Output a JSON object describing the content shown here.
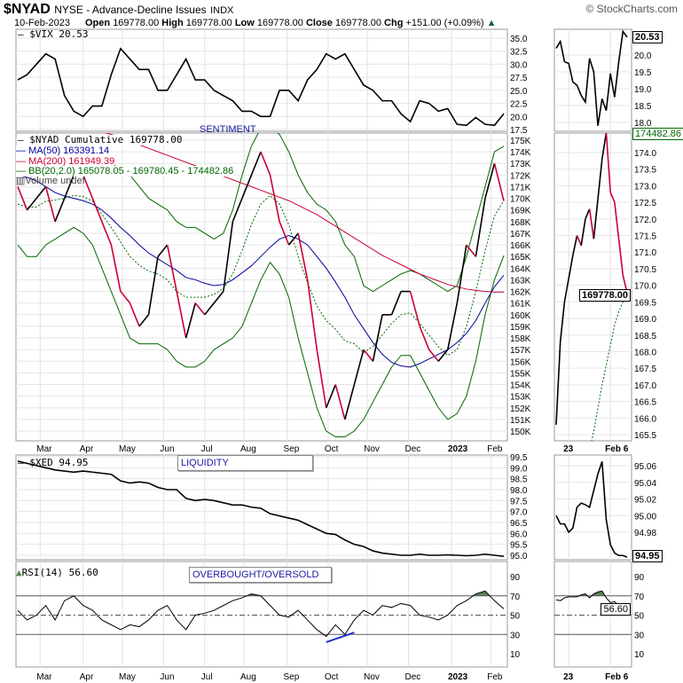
{
  "header": {
    "symbol": "$NYAD",
    "exchange": "NYSE - Advance-Decline Issues",
    "type": "INDX",
    "brand": "© StockCharts.com",
    "date": "10-Feb-2023",
    "open_label": "Open",
    "open": "169778.00",
    "high_label": "High",
    "high": "169778.00",
    "low_label": "Low",
    "low": "169778.00",
    "close_label": "Close",
    "close": "169778.00",
    "chg_label": "Chg",
    "chg": "+151.00 (+0.09%)"
  },
  "legends": {
    "vix": "$VIX 20.53",
    "nyad": "$NYAD Cumulative 169778.00",
    "ma50": "MA(50) 163391.14",
    "ma200": "MA(200) 161949.39",
    "bb": "BB(20,2.0) 165078.05 - 169780.45 - 174482.86",
    "volume": "Volume undef",
    "xed": "$XED 94.95",
    "rsi": "RSI(14) 56.60"
  },
  "annotations": {
    "sentiment": "SENTIMENT",
    "liquidity": "LIQUIDITY",
    "obos": "OVERBOUGHT/OVERSOLD"
  },
  "last_values": {
    "vix": "20.53",
    "bb_upper": "174482.86",
    "nyad": "169778.00",
    "xed": "94.95",
    "rsi": "56.60"
  },
  "colors": {
    "price": "#000000",
    "down": "#cc0033",
    "ma50": "#000099",
    "ma200": "#cc0033",
    "bb": "#006600",
    "annotation": "#1a1aa0",
    "rsi_fill_high": "#5a7f5a",
    "divergence": "#2233cc"
  },
  "chart_data": {
    "type": "line",
    "month_labels": [
      [
        "2022-03-01",
        "Mar"
      ],
      [
        "2022-04-01",
        "Apr"
      ],
      [
        "2022-05-02",
        "May"
      ],
      [
        "2022-06-01",
        "Jun"
      ],
      [
        "2022-07-01",
        "Jul"
      ],
      [
        "2022-08-01",
        "Aug"
      ],
      [
        "2022-09-01",
        "Sep"
      ],
      [
        "2022-10-03",
        "Oct"
      ],
      [
        "2022-11-01",
        "Nov"
      ],
      [
        "2022-12-01",
        "Dec"
      ],
      [
        "2023-01-03",
        "2023"
      ],
      [
        "2023-02-01",
        "Feb"
      ]
    ],
    "weekly_dates": [
      "2022-02-11",
      "2022-02-18",
      "2022-02-25",
      "2022-03-04",
      "2022-03-11",
      "2022-03-18",
      "2022-03-25",
      "2022-04-01",
      "2022-04-08",
      "2022-04-15",
      "2022-04-22",
      "2022-04-29",
      "2022-05-06",
      "2022-05-13",
      "2022-05-20",
      "2022-05-27",
      "2022-06-03",
      "2022-06-10",
      "2022-06-17",
      "2022-06-24",
      "2022-07-01",
      "2022-07-08",
      "2022-07-15",
      "2022-07-22",
      "2022-07-29",
      "2022-08-05",
      "2022-08-12",
      "2022-08-19",
      "2022-08-26",
      "2022-09-02",
      "2022-09-09",
      "2022-09-16",
      "2022-09-23",
      "2022-09-30",
      "2022-10-07",
      "2022-10-14",
      "2022-10-21",
      "2022-10-28",
      "2022-11-04",
      "2022-11-11",
      "2022-11-18",
      "2022-11-25",
      "2022-12-02",
      "2022-12-09",
      "2022-12-16",
      "2022-12-23",
      "2022-12-30",
      "2023-01-06",
      "2023-01-13",
      "2023-01-20",
      "2023-01-27",
      "2023-02-03",
      "2023-02-10"
    ],
    "vix": {
      "ticks": [
        17.5,
        20,
        22.5,
        25,
        27.5,
        30,
        32.5,
        35
      ],
      "ylim": [
        17.5,
        35
      ],
      "values": [
        27,
        28,
        30,
        32,
        31,
        24,
        21,
        20,
        22,
        22,
        28,
        33,
        31,
        29,
        29,
        25,
        25,
        28,
        31,
        27,
        27,
        25,
        24,
        23,
        21,
        21,
        20,
        20,
        25,
        25,
        23,
        27,
        29,
        32,
        31,
        32,
        29,
        26,
        25,
        23,
        23,
        20.5,
        19,
        23,
        22.5,
        21,
        21.5,
        18.5,
        18.3,
        19.8,
        18.5,
        18.3,
        20.53
      ]
    },
    "nyad": {
      "ticks": [
        150,
        151,
        152,
        153,
        154,
        155,
        156,
        157,
        158,
        159,
        160,
        161,
        162,
        163,
        164,
        165,
        166,
        167,
        168,
        169,
        170,
        171,
        172,
        173,
        174,
        175
      ],
      "tick_suffix": "K",
      "ylim": [
        149.5,
        175.6
      ],
      "values": [
        171,
        169,
        170,
        171,
        168,
        170,
        172,
        172,
        170,
        168,
        166,
        162,
        161,
        159,
        160,
        165,
        166,
        162,
        158,
        161,
        160,
        161,
        162,
        168,
        170,
        172,
        174,
        172,
        168,
        166,
        167,
        163,
        157,
        152,
        154,
        151,
        154,
        157,
        156,
        160,
        160,
        162,
        162,
        159,
        157,
        156,
        157,
        161,
        166,
        165,
        170,
        173,
        169.778
      ],
      "ma50": [
        172,
        171.8,
        171.5,
        171,
        170.5,
        170.2,
        170,
        169.8,
        169.5,
        169,
        168.3,
        167.5,
        166.8,
        166,
        165.3,
        164.8,
        164.3,
        163.8,
        163.2,
        163,
        162.7,
        162.5,
        162.6,
        163,
        163.6,
        164.2,
        165,
        165.8,
        166.5,
        166.8,
        166.5,
        166,
        165,
        164,
        162.8,
        161.5,
        160,
        158.8,
        157.6,
        156.6,
        155.9,
        155.6,
        155.5,
        155.8,
        156.2,
        156.6,
        157,
        157.6,
        158.4,
        159.5,
        161,
        162.4,
        163.39
      ],
      "ma200": [
        177.5,
        177.3,
        177.1,
        176.9,
        176.7,
        176.5,
        176.3,
        176.1,
        175.9,
        175.7,
        175.5,
        175.2,
        174.9,
        174.6,
        174.3,
        174,
        173.7,
        173.4,
        173.1,
        172.8,
        172.5,
        172.2,
        171.9,
        171.6,
        171.3,
        171,
        170.7,
        170.4,
        170.1,
        169.8,
        169.4,
        169,
        168.6,
        168.1,
        167.6,
        167.1,
        166.6,
        166.1,
        165.6,
        165.1,
        164.7,
        164.3,
        163.9,
        163.5,
        163.2,
        162.9,
        162.6,
        162.4,
        162.2,
        162.1,
        162,
        161.95,
        161.95
      ],
      "bb_upper": [
        173,
        173.5,
        173.5,
        173.5,
        173.2,
        173,
        173,
        173.3,
        173.5,
        173.3,
        173,
        172.5,
        172,
        171,
        170,
        169.5,
        169,
        168,
        167.5,
        167.5,
        167,
        166.5,
        167,
        169,
        172,
        174.5,
        176,
        176,
        175.5,
        174,
        172,
        170.5,
        169.5,
        169,
        168,
        166,
        165,
        162.5,
        162,
        162.5,
        163,
        163.5,
        163.8,
        163.5,
        163,
        162.5,
        162,
        162.5,
        165,
        168,
        171,
        174,
        174.48
      ],
      "bb_lower": [
        166,
        165,
        165,
        166,
        166.5,
        167,
        167.5,
        167,
        166,
        164,
        162,
        160,
        158,
        157.5,
        157.5,
        157.5,
        157,
        156,
        155.5,
        155.5,
        156,
        157,
        157.5,
        158,
        159,
        161,
        163,
        164.5,
        163.5,
        161.5,
        158,
        155,
        152,
        150,
        149.5,
        149.5,
        150,
        151,
        152.5,
        154,
        155.5,
        156.5,
        156.5,
        155,
        153.5,
        152,
        151,
        151.5,
        153,
        156,
        160,
        163,
        165.08
      ]
    },
    "xed": {
      "ticks": [
        95,
        95.5,
        96,
        96.5,
        97,
        97.5,
        98,
        98.5,
        99,
        99.5
      ],
      "ylim": [
        94.9,
        99.5
      ],
      "values": [
        99.3,
        99.2,
        99.1,
        99.0,
        98.9,
        98.85,
        98.8,
        98.85,
        98.8,
        98.75,
        98.7,
        98.4,
        98.3,
        98.35,
        98.3,
        98.1,
        98.0,
        98.0,
        97.6,
        97.5,
        97.55,
        97.5,
        97.4,
        97.3,
        97.3,
        97.2,
        97.15,
        96.9,
        96.8,
        96.7,
        96.6,
        96.4,
        96.2,
        96.0,
        95.95,
        95.7,
        95.5,
        95.4,
        95.2,
        95.1,
        95.05,
        95.0,
        95.0,
        95.05,
        95.0,
        95.0,
        95.02,
        95.0,
        94.98,
        95.0,
        95.05,
        95.0,
        94.95
      ]
    },
    "rsi": {
      "ticks": [
        10,
        30,
        50,
        70,
        90
      ],
      "ylim": [
        0,
        100
      ],
      "overbought": 70,
      "oversold": 30,
      "mid": 50,
      "values": [
        55,
        45,
        50,
        60,
        45,
        65,
        70,
        60,
        55,
        45,
        40,
        35,
        40,
        38,
        45,
        55,
        60,
        45,
        35,
        50,
        52,
        55,
        60,
        65,
        68,
        72,
        70,
        60,
        50,
        48,
        55,
        45,
        35,
        28,
        40,
        30,
        45,
        55,
        50,
        60,
        58,
        62,
        60,
        50,
        48,
        45,
        50,
        60,
        65,
        72,
        75,
        65,
        56.6
      ],
      "divergence": [
        [
          "2022-09-30",
          22
        ],
        [
          "2022-10-21",
          32
        ]
      ]
    },
    "zoom": {
      "dates": [
        "2023-01-18",
        "2023-01-19",
        "2023-01-20",
        "2023-01-23",
        "2023-01-24",
        "2023-01-25",
        "2023-01-26",
        "2023-01-27",
        "2023-01-30",
        "2023-01-31",
        "2023-02-01",
        "2023-02-02",
        "2023-02-03",
        "2023-02-06",
        "2023-02-07",
        "2023-02-08",
        "2023-02-09",
        "2023-02-10"
      ],
      "x_labels": [
        [
          "2023-01-23",
          "23"
        ],
        [
          "2023-02-06",
          "Feb 6"
        ]
      ],
      "vix": {
        "ticks": [
          18,
          18.5,
          19,
          19.5,
          20
        ],
        "ylim": [
          17.8,
          20.75
        ],
        "values": [
          20.2,
          20.4,
          19.8,
          19.75,
          19.2,
          19.1,
          18.8,
          18.6,
          19.9,
          19.5,
          17.9,
          18.7,
          18.35,
          19.45,
          18.75,
          19.8,
          20.7,
          20.53
        ]
      },
      "nyad": {
        "ticks": [
          165.5,
          166,
          166.5,
          167,
          167.5,
          168,
          168.5,
          169,
          169.5,
          170,
          170.5,
          171,
          171.5,
          172,
          172.5,
          173,
          173.5,
          174
        ],
        "ylim": [
          165.3,
          174.7
        ],
        "values": [
          165.8,
          168.3,
          169.5,
          170.2,
          170.9,
          171.5,
          171.2,
          172,
          172.3,
          171.4,
          172.6,
          173.8,
          174.6,
          172.8,
          172.5,
          171.4,
          170.3,
          169.78
        ],
        "bb_mid": [
          158,
          159,
          160,
          161,
          162,
          163,
          163.5,
          164,
          165,
          165.6,
          166.3,
          167,
          167.6,
          168.2,
          168.8,
          169.2,
          169.5,
          169.78
        ]
      },
      "xed": {
        "ticks": [
          94.98,
          95,
          95.02,
          95.04,
          95.06
        ],
        "ylim": [
          94.94,
          95.075
        ],
        "values": [
          95.0,
          94.99,
          94.99,
          94.98,
          94.985,
          95.01,
          95.015,
          95.013,
          95.01,
          95.03,
          95.05,
          95.065,
          94.995,
          94.965,
          94.955,
          94.952,
          94.952,
          94.95
        ]
      },
      "rsi": {
        "ticks": [
          10,
          30,
          50,
          70,
          90
        ],
        "values": [
          66,
          65,
          68,
          69,
          69,
          69,
          71,
          72,
          68,
          72,
          74,
          75,
          68,
          63,
          64,
          60,
          56,
          56.6
        ]
      }
    }
  }
}
